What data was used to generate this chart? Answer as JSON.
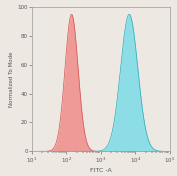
{
  "title": "",
  "xlabel": "FITC -A",
  "ylabel": "Normalized To Mode",
  "xlim_log": [
    1,
    5
  ],
  "ylim": [
    0,
    100
  ],
  "yticks": [
    0,
    20,
    40,
    60,
    80,
    100
  ],
  "xticks_log": [
    1,
    2,
    3,
    4,
    5
  ],
  "red_peak_log": 2.15,
  "red_peak_height": 95,
  "red_sigma": 0.19,
  "cyan_peak_log": 3.82,
  "cyan_peak_height": 95,
  "cyan_sigma": 0.25,
  "red_fill_color": "#F28080",
  "red_edge_color": "#D05555",
  "cyan_fill_color": "#6DDAE8",
  "cyan_edge_color": "#2AAABB",
  "background_color": "#EDE8E2",
  "figure_bg": "#EDE8E2",
  "spine_color": "#999999",
  "n_points": 600
}
